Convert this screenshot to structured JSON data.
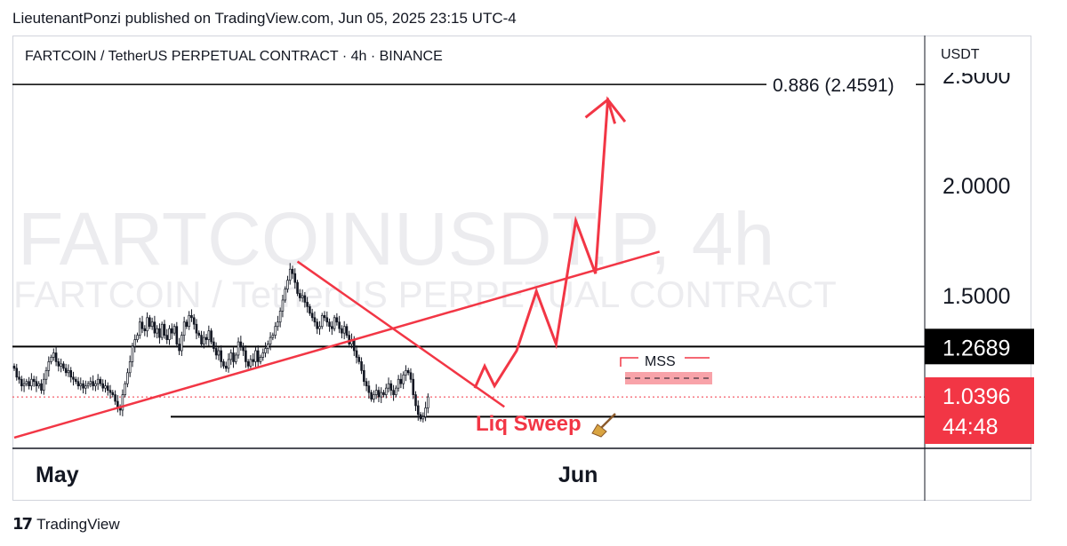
{
  "header": {
    "published": "LieutenantPonzi published on TradingView.com, Jun 05, 2025 23:15 UTC-4",
    "symbol_title": "FARTCOIN / TetherUS PERPETUAL CONTRACT · 4h · BINANCE",
    "currency": "USDT"
  },
  "watermark": {
    "line1": "FARTCOINUSDT.P, 4h",
    "line2": "FARTCOIN / TetherUS PERPETUAL CONTRACT"
  },
  "footer": {
    "brand": "TradingView",
    "logo_glyph": "17"
  },
  "colors": {
    "annotation_red": "#f23645",
    "bearish_candle": "#131722",
    "last_price_bg": "#f23645",
    "level_bg": "#000000",
    "mss_zone": "#f8a3a9"
  },
  "chart_data": {
    "type": "candlestick",
    "timeframe": "4h",
    "x_labels": [
      "May",
      "Jun"
    ],
    "y_ticks": [
      1.5,
      2.0
    ],
    "y_tick_labels": [
      "1.5000",
      "2.0000"
    ],
    "ylim": [
      0.75,
      2.5
    ],
    "current_price": 1.0396,
    "current_price_label": "1.0396",
    "countdown": "44:48",
    "levels": {
      "resistance": 1.2689,
      "resistance_label": "1.2689",
      "support": 0.95
    },
    "fib_target": {
      "level": "0.886",
      "price": 2.4591,
      "label": "0.886 (2.4591)"
    },
    "annotations": {
      "liq_sweep": "Liq Sweep",
      "mss": "MSS"
    },
    "trendlines": {
      "ascending": [
        [
          0,
          0.855
        ],
        [
          262,
          1.7
        ]
      ],
      "descending": [
        [
          115,
          1.655
        ],
        [
          199,
          0.995
        ]
      ]
    },
    "projected_path": [
      [
        187,
        1.08
      ],
      [
        191,
        1.18
      ],
      [
        195,
        1.09
      ],
      [
        204,
        1.25
      ],
      [
        212,
        1.52
      ],
      [
        220,
        1.28
      ],
      [
        228,
        1.84
      ],
      [
        236,
        1.6
      ],
      [
        241,
        2.39
      ],
      [
        248,
        2.29
      ]
    ],
    "candles_close": [
      1.17,
      1.13,
      1.12,
      1.09,
      1.1,
      1.11,
      1.09,
      1.12,
      1.11,
      1.09,
      1.1,
      1.07,
      1.12,
      1.16,
      1.2,
      1.22,
      1.24,
      1.2,
      1.18,
      1.19,
      1.17,
      1.15,
      1.16,
      1.13,
      1.12,
      1.11,
      1.09,
      1.1,
      1.08,
      1.09,
      1.1,
      1.11,
      1.09,
      1.1,
      1.12,
      1.1,
      1.08,
      1.09,
      1.07,
      1.06,
      1.05,
      1.02,
      0.99,
      0.98,
      1.05,
      1.1,
      1.15,
      1.2,
      1.27,
      1.3,
      1.32,
      1.38,
      1.35,
      1.34,
      1.4,
      1.36,
      1.38,
      1.33,
      1.35,
      1.31,
      1.37,
      1.32,
      1.3,
      1.35,
      1.33,
      1.36,
      1.28,
      1.25,
      1.32,
      1.38,
      1.36,
      1.41,
      1.4,
      1.37,
      1.33,
      1.32,
      1.28,
      1.31,
      1.3,
      1.34,
      1.29,
      1.26,
      1.23,
      1.25,
      1.2,
      1.18,
      1.17,
      1.21,
      1.24,
      1.2,
      1.23,
      1.29,
      1.27,
      1.25,
      1.2,
      1.18,
      1.21,
      1.2,
      1.25,
      1.2,
      1.22,
      1.24,
      1.26,
      1.28,
      1.31,
      1.32,
      1.36,
      1.38,
      1.43,
      1.48,
      1.53,
      1.57,
      1.62,
      1.6,
      1.56,
      1.51,
      1.49,
      1.5,
      1.47,
      1.45,
      1.42,
      1.4,
      1.38,
      1.35,
      1.36,
      1.41,
      1.4,
      1.38,
      1.36,
      1.35,
      1.4,
      1.38,
      1.35,
      1.33,
      1.36,
      1.32,
      1.28,
      1.3,
      1.25,
      1.22,
      1.2,
      1.16,
      1.11,
      1.09,
      1.06,
      1.03,
      1.05,
      1.07,
      1.04,
      1.06,
      1.05,
      1.08,
      1.1,
      1.07,
      1.05,
      1.08,
      1.12,
      1.1,
      1.14,
      1.16,
      1.15,
      1.12,
      1.05,
      1.0,
      0.96,
      0.94,
      0.95,
      0.99,
      1.04
    ]
  }
}
